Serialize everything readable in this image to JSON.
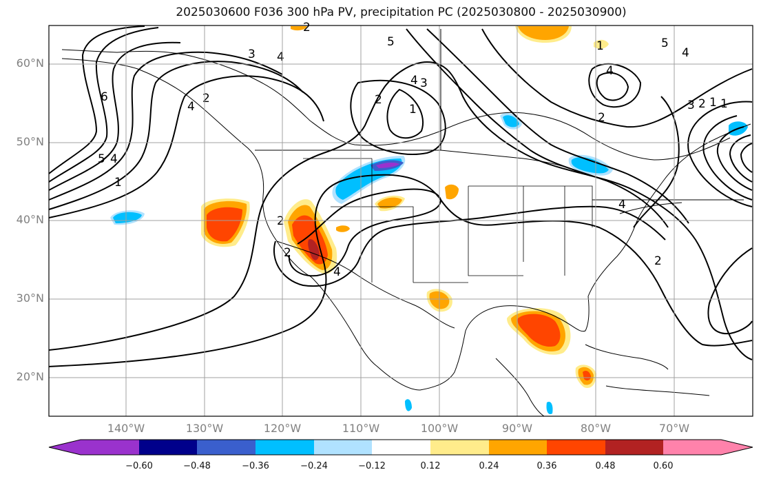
{
  "title": "2025030600 F036 300 hPa PV, precipitation PC (2025030800 - 2025030900)",
  "lat_labels": [
    "60°N",
    "50°N",
    "40°N",
    "30°N",
    "20°N"
  ],
  "lon_labels": [
    "140°W",
    "130°W",
    "120°W",
    "110°W",
    "100°W",
    "90°W",
    "80°W",
    "70°W"
  ],
  "colorbar": {
    "ticks": [
      "−0.60",
      "−0.48",
      "−0.36",
      "−0.24",
      "−0.12",
      "0.12",
      "0.24",
      "0.36",
      "0.48",
      "0.60"
    ],
    "colors": [
      "#9a32cd",
      "#00008b",
      "#3a5fcd",
      "#00bfff",
      "#b0e2ff",
      "#ffffff",
      "#ffec8b",
      "#ffa500",
      "#ff4500",
      "#b22222",
      "#ff82ab"
    ]
  },
  "contour_labels": [
    "6",
    "5",
    "4",
    "1",
    "3",
    "4",
    "2",
    "5",
    "4",
    "3",
    "2",
    "1",
    "2",
    "4",
    "4",
    "4",
    "3",
    "2",
    "1",
    "2",
    "4",
    "1",
    "2",
    "2",
    "1",
    "4",
    "5",
    "2"
  ],
  "colors": {
    "contour": "#000000",
    "grid": "#a0a0a0",
    "label": "#808080"
  }
}
